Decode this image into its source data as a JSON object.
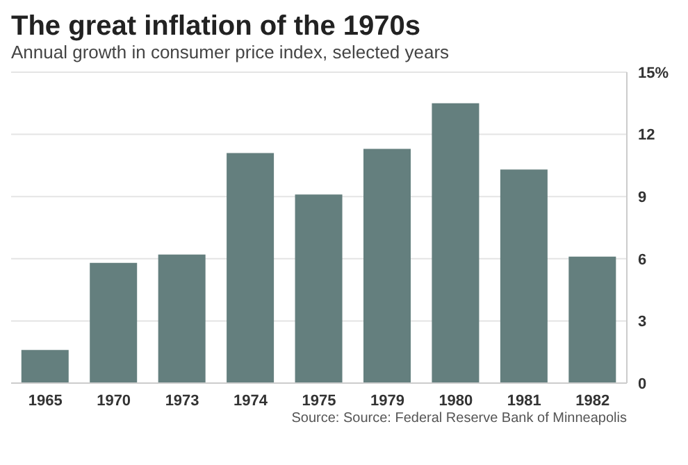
{
  "chart_data": {
    "type": "bar",
    "title": "The great inflation of the 1970s",
    "subtitle": "Annual growth in consumer price index, selected years",
    "categories": [
      "1965",
      "1970",
      "1973",
      "1974",
      "1975",
      "1979",
      "1980",
      "1981",
      "1982"
    ],
    "values": [
      1.6,
      5.8,
      6.2,
      11.1,
      9.1,
      11.3,
      13.5,
      10.3,
      6.1
    ],
    "color": "#647f7e",
    "ylim": [
      0,
      15
    ],
    "yticks": [
      0,
      3,
      6,
      9,
      12,
      {
        "value": 15,
        "label": "15%"
      }
    ],
    "grid": "y",
    "annotations": [
      "Source: Source: Federal Reserve Bank of Minneapolis"
    ]
  }
}
